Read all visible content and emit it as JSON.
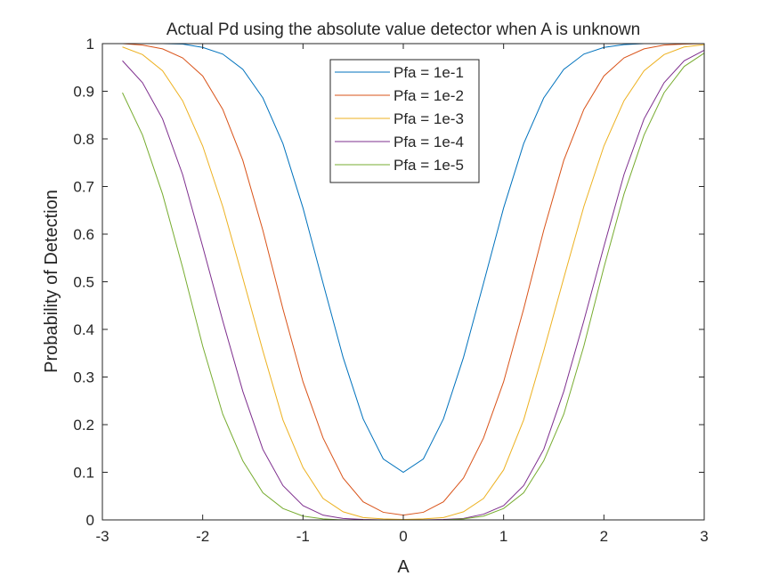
{
  "chart_data": {
    "type": "line",
    "title": "Actual Pd using the absolute value detector when A is unknown",
    "xlabel": "A",
    "ylabel": "Probability of Detection",
    "xlim": [
      -3,
      3
    ],
    "ylim": [
      0,
      1
    ],
    "xticks": [
      -3,
      -2,
      -1,
      0,
      1,
      2,
      3
    ],
    "xtick_labels": [
      "-3",
      "-2",
      "-1",
      "0",
      "1",
      "2",
      "3"
    ],
    "yticks": [
      0,
      0.1,
      0.2,
      0.3,
      0.4,
      0.5,
      0.6,
      0.7,
      0.8,
      0.9,
      1
    ],
    "ytick_labels": [
      "0",
      "0.1",
      "0.2",
      "0.3",
      "0.4",
      "0.5",
      "0.6",
      "0.7",
      "0.8",
      "0.9",
      "1"
    ],
    "grid": false,
    "legend_position": "top-center",
    "x": [
      -2.8,
      -2.6,
      -2.4,
      -2.2,
      -2.0,
      -1.8,
      -1.6,
      -1.4,
      -1.2,
      -1.0,
      -0.8,
      -0.6,
      -0.4,
      -0.2,
      0.0,
      0.2,
      0.4,
      0.6,
      0.8,
      1.0,
      1.2,
      1.4,
      1.6,
      1.8,
      2.0,
      2.2,
      2.4,
      2.6,
      2.8,
      3.0
    ],
    "series": [
      {
        "name": "Pfa = 1e-1",
        "color": "#0072BD",
        "values": [
          1.0,
          1.0,
          1.0,
          0.999,
          0.992,
          0.978,
          0.946,
          0.886,
          0.79,
          0.655,
          0.497,
          0.341,
          0.212,
          0.128,
          0.1,
          0.128,
          0.212,
          0.341,
          0.497,
          0.655,
          0.79,
          0.886,
          0.946,
          0.978,
          0.992,
          0.998,
          1.0,
          1.0,
          1.0,
          1.0
        ]
      },
      {
        "name": "Pfa = 1e-2",
        "color": "#D95319",
        "values": [
          1.0,
          0.997,
          0.989,
          0.97,
          0.932,
          0.862,
          0.755,
          0.608,
          0.443,
          0.29,
          0.172,
          0.088,
          0.038,
          0.016,
          0.01,
          0.016,
          0.038,
          0.088,
          0.172,
          0.29,
          0.443,
          0.608,
          0.755,
          0.862,
          0.932,
          0.97,
          0.989,
          0.997,
          0.999,
          1.0
        ]
      },
      {
        "name": "Pfa = 1e-3",
        "color": "#EDB120",
        "values": [
          0.993,
          0.977,
          0.943,
          0.88,
          0.785,
          0.658,
          0.508,
          0.355,
          0.21,
          0.11,
          0.045,
          0.017,
          0.005,
          0.002,
          0.001,
          0.002,
          0.005,
          0.017,
          0.045,
          0.105,
          0.21,
          0.355,
          0.508,
          0.658,
          0.785,
          0.88,
          0.943,
          0.977,
          0.993,
          0.998
        ]
      },
      {
        "name": "Pfa = 1e-4",
        "color": "#7E2F8E",
        "values": [
          0.964,
          0.918,
          0.842,
          0.725,
          0.574,
          0.418,
          0.27,
          0.148,
          0.072,
          0.03,
          0.01,
          0.003,
          0.001,
          0.0,
          0.0,
          0.0,
          0.001,
          0.003,
          0.012,
          0.03,
          0.072,
          0.148,
          0.27,
          0.418,
          0.574,
          0.725,
          0.842,
          0.918,
          0.964,
          0.986
        ]
      },
      {
        "name": "Pfa = 1e-5",
        "color": "#77AC30",
        "values": [
          0.897,
          0.808,
          0.684,
          0.53,
          0.365,
          0.222,
          0.124,
          0.057,
          0.024,
          0.008,
          0.002,
          0.0,
          0.0,
          0.0,
          0.0,
          0.0,
          0.0,
          0.002,
          0.008,
          0.024,
          0.057,
          0.124,
          0.222,
          0.365,
          0.53,
          0.684,
          0.808,
          0.897,
          0.952,
          0.98
        ]
      }
    ]
  }
}
